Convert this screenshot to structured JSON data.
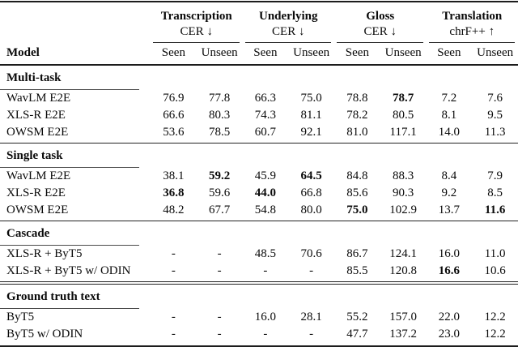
{
  "colors": {
    "text": "#0a0a0a",
    "rule": "#1c1c1c",
    "background": "#ffffff"
  },
  "table": {
    "header": {
      "model_label": "Model",
      "groups": [
        {
          "title": "Transcription",
          "metric": "CER ↓"
        },
        {
          "title": "Underlying",
          "metric": "CER ↓"
        },
        {
          "title": "Gloss",
          "metric": "CER ↓"
        },
        {
          "title": "Translation",
          "metric": "chrF++ ↑"
        }
      ],
      "subcols": [
        "Seen",
        "Unseen"
      ]
    },
    "sections": [
      {
        "label": "Multi-task",
        "rule_after": "single",
        "rows": [
          {
            "model": "WavLM E2E",
            "values": [
              "76.9",
              "77.8",
              "66.3",
              "75.0",
              "78.8",
              "78.7",
              "7.2",
              "7.6"
            ],
            "bold": [
              5
            ]
          },
          {
            "model": "XLS-R E2E",
            "values": [
              "66.6",
              "80.3",
              "74.3",
              "81.1",
              "78.2",
              "80.5",
              "8.1",
              "9.5"
            ],
            "bold": []
          },
          {
            "model": "OWSM E2E",
            "values": [
              "53.6",
              "78.5",
              "60.7",
              "92.1",
              "81.0",
              "117.1",
              "14.0",
              "11.3"
            ],
            "bold": []
          }
        ]
      },
      {
        "label": "Single task",
        "rule_after": "single",
        "rows": [
          {
            "model": "WavLM E2E",
            "values": [
              "38.1",
              "59.2",
              "45.9",
              "64.5",
              "84.8",
              "88.3",
              "8.4",
              "7.9"
            ],
            "bold": [
              1,
              3
            ]
          },
          {
            "model": "XLS-R E2E",
            "values": [
              "36.8",
              "59.6",
              "44.0",
              "66.8",
              "85.6",
              "90.3",
              "9.2",
              "8.5"
            ],
            "bold": [
              0,
              2
            ]
          },
          {
            "model": "OWSM E2E",
            "values": [
              "48.2",
              "67.7",
              "54.8",
              "80.0",
              "75.0",
              "102.9",
              "13.7",
              "11.6"
            ],
            "bold": [
              4,
              7
            ]
          }
        ]
      },
      {
        "label": "Cascade",
        "rule_after": "double",
        "rows": [
          {
            "model": "XLS-R + ByT5",
            "values": [
              "-",
              "-",
              "48.5",
              "70.6",
              "86.7",
              "124.1",
              "16.0",
              "11.0"
            ],
            "bold": []
          },
          {
            "model": "XLS-R + ByT5 w/ ODIN",
            "values": [
              "-",
              "-",
              "-",
              "-",
              "85.5",
              "120.8",
              "16.6",
              "10.6"
            ],
            "bold": [
              6
            ]
          }
        ]
      },
      {
        "label": "Ground truth text",
        "rule_after": "none",
        "rows": [
          {
            "model": "ByT5",
            "values": [
              "-",
              "-",
              "16.0",
              "28.1",
              "55.2",
              "157.0",
              "22.0",
              "12.2"
            ],
            "bold": []
          },
          {
            "model": "ByT5 w/ ODIN",
            "values": [
              "-",
              "-",
              "-",
              "-",
              "47.7",
              "137.2",
              "23.0",
              "12.2"
            ],
            "bold": []
          }
        ]
      }
    ]
  }
}
